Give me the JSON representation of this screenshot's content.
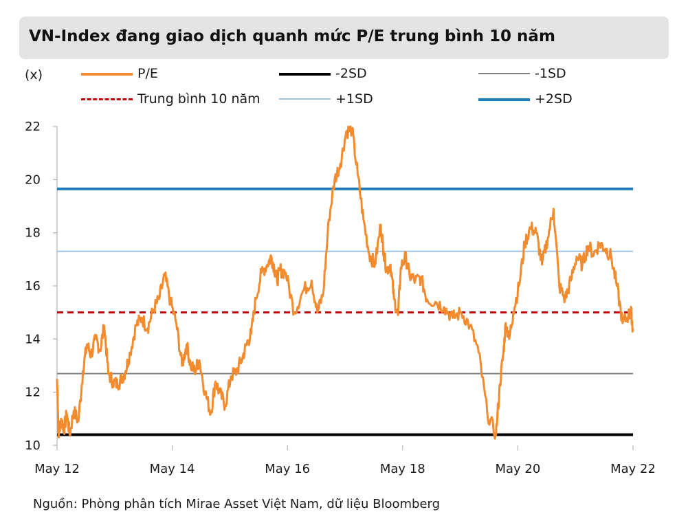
{
  "title": "VN-Index đang giao dịch quanh mức P/E trung bình 10 năm",
  "unit_label": "(x)",
  "source": "Nguồn: Phòng phân tích Mirae Asset Việt Nam, dữ liệu Bloomberg",
  "legend": [
    {
      "label": "P/E",
      "color": "#f28a2e",
      "style": "solid"
    },
    {
      "label": "-2SD",
      "color": "#000000",
      "style": "solid"
    },
    {
      "label": "-1SD",
      "color": "#808080",
      "style": "solid"
    },
    {
      "label": "Trung bình 10 năm",
      "color": "#c00000",
      "style": "dashed"
    },
    {
      "label": "+1SD",
      "color": "#9dc3e6",
      "style": "solid"
    },
    {
      "label": "+2SD",
      "color": "#1f7fba",
      "style": "solid"
    }
  ],
  "chart_data": {
    "type": "line",
    "x_ticks": [
      "May 12",
      "May 14",
      "May 16",
      "May 18",
      "May 20",
      "May 22"
    ],
    "x_range": [
      2012.33,
      2022.33
    ],
    "ylim": [
      10,
      22
    ],
    "y_ticks": [
      10,
      12,
      14,
      16,
      18,
      20,
      22
    ],
    "grid": false,
    "legend_position": "top",
    "reference_lines": [
      {
        "name": "-2SD",
        "value": 10.4
      },
      {
        "name": "-1SD",
        "value": 12.7
      },
      {
        "name": "Trung bình 10 năm",
        "value": 15.0
      },
      {
        "name": "+1SD",
        "value": 17.3
      },
      {
        "name": "+2SD",
        "value": 19.65
      }
    ],
    "series": [
      {
        "name": "P/E",
        "x": [
          2012.33,
          2012.36,
          2012.4,
          2012.45,
          2012.5,
          2012.55,
          2012.62,
          2012.7,
          2012.78,
          2012.85,
          2012.92,
          2013.0,
          2013.08,
          2013.15,
          2013.22,
          2013.3,
          2013.38,
          2013.45,
          2013.52,
          2013.6,
          2013.7,
          2013.8,
          2013.9,
          2014.0,
          2014.1,
          2014.2,
          2014.3,
          2014.4,
          2014.5,
          2014.58,
          2014.65,
          2014.72,
          2014.8,
          2014.9,
          2015.0,
          2015.08,
          2015.15,
          2015.25,
          2015.35,
          2015.45,
          2015.55,
          2015.62,
          2015.7,
          2015.78,
          2015.88,
          2015.98,
          2016.05,
          2016.1,
          2016.15,
          2016.2,
          2016.3,
          2016.45,
          2016.6,
          2016.75,
          2016.85,
          2016.95,
          2017.05,
          2017.15,
          2017.25,
          2017.35,
          2017.45,
          2017.55,
          2017.65,
          2017.75,
          2017.85,
          2017.95,
          2018.0,
          2018.05,
          2018.12,
          2018.18,
          2018.25,
          2018.3,
          2018.38,
          2018.45,
          2018.55,
          2018.65,
          2018.75,
          2018.9,
          2019.05,
          2019.2,
          2019.35,
          2019.5,
          2019.65,
          2019.8,
          2019.95,
          2020.02,
          2020.08,
          2020.12,
          2020.18,
          2020.25,
          2020.35,
          2020.45,
          2020.55,
          2020.65,
          2020.75,
          2020.85,
          2020.95,
          2021.05,
          2021.15,
          2021.25,
          2021.35,
          2021.45,
          2021.55,
          2021.65,
          2021.75,
          2021.85,
          2021.95,
          2022.05,
          2022.15,
          2022.25,
          2022.3,
          2022.33
        ],
        "values": [
          12.5,
          10.3,
          11.0,
          10.6,
          11.2,
          10.4,
          11.3,
          10.9,
          12.8,
          13.8,
          13.4,
          14.0,
          13.6,
          14.5,
          12.7,
          12.4,
          12.3,
          12.5,
          12.8,
          13.5,
          14.5,
          14.8,
          14.4,
          15.1,
          15.5,
          16.4,
          15.4,
          14.6,
          13.0,
          13.8,
          13.0,
          12.8,
          13.2,
          12.0,
          11.2,
          12.4,
          12.0,
          11.5,
          12.6,
          12.8,
          13.3,
          13.8,
          14.2,
          15.5,
          16.5,
          16.8,
          17.1,
          16.7,
          16.2,
          16.6,
          16.5,
          15.0,
          15.8,
          16.2,
          15.0,
          15.7,
          18.5,
          20.0,
          20.6,
          21.8,
          21.9,
          20.2,
          18.5,
          17.2,
          16.8,
          18.3,
          17.3,
          16.6,
          16.8,
          15.5,
          14.9,
          16.7,
          17.1,
          16.4,
          16.2,
          16.3,
          15.5,
          15.4,
          15.2,
          14.8,
          15.0,
          14.5,
          13.5,
          11.2,
          10.4,
          12.3,
          13.5,
          14.6,
          14.0,
          15.0,
          16.0,
          17.6,
          18.2,
          18.0,
          16.8,
          17.8,
          18.9,
          16.0,
          15.5,
          16.2,
          17.1,
          16.8,
          17.5,
          17.2,
          17.6,
          17.4,
          17.1,
          16.0,
          14.6,
          14.9,
          15.0,
          14.3
        ]
      }
    ]
  }
}
